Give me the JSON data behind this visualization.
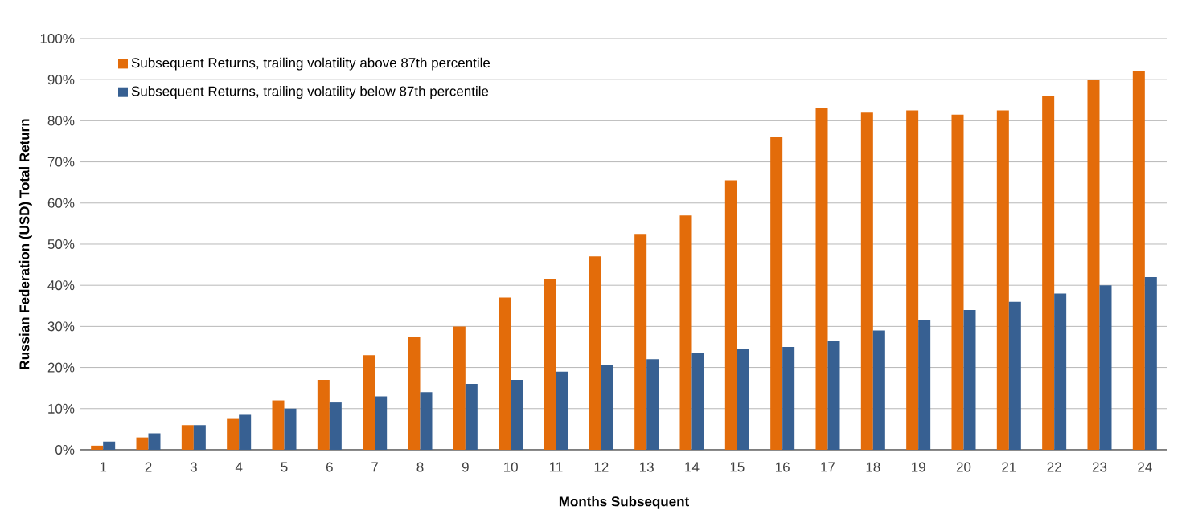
{
  "chart_data": {
    "type": "bar",
    "xlabel": "Months Subsequent",
    "ylabel": "Russian Federation (USD) Total Return",
    "categories": [
      "1",
      "2",
      "3",
      "4",
      "5",
      "6",
      "7",
      "8",
      "9",
      "10",
      "11",
      "12",
      "13",
      "14",
      "15",
      "16",
      "17",
      "18",
      "19",
      "20",
      "21",
      "22",
      "23",
      "24"
    ],
    "series": [
      {
        "name": "Subsequent Returns, trailing volatility above 87th percentile",
        "color": "#e36c0a",
        "values": [
          1,
          3,
          6,
          7.5,
          12,
          17,
          23,
          27.5,
          30,
          37,
          41.5,
          47,
          52.5,
          57,
          65.5,
          76,
          83,
          82,
          82.5,
          81.5,
          82.5,
          86,
          90,
          92
        ]
      },
      {
        "name": "Subsequent Returns, trailing volatility below 87th percentile",
        "color": "#376092",
        "values": [
          2,
          4,
          6,
          8.5,
          10,
          11.5,
          13,
          14,
          16,
          17,
          19,
          20.5,
          22,
          23.5,
          24.5,
          25,
          26.5,
          29,
          31.5,
          34,
          36,
          38,
          40,
          42
        ]
      }
    ],
    "ylim": [
      0,
      100
    ],
    "yticks": [
      {
        "value": 0,
        "label": "0%"
      },
      {
        "value": 10,
        "label": "10%"
      },
      {
        "value": 20,
        "label": "20%"
      },
      {
        "value": 30,
        "label": "30%"
      },
      {
        "value": 40,
        "label": "40%"
      },
      {
        "value": 50,
        "label": "50%"
      },
      {
        "value": 60,
        "label": "60%"
      },
      {
        "value": 70,
        "label": "70%"
      },
      {
        "value": 80,
        "label": "80%"
      },
      {
        "value": 90,
        "label": "90%"
      },
      {
        "value": 100,
        "label": "100%"
      }
    ],
    "grid": "y",
    "legend": "top left"
  }
}
